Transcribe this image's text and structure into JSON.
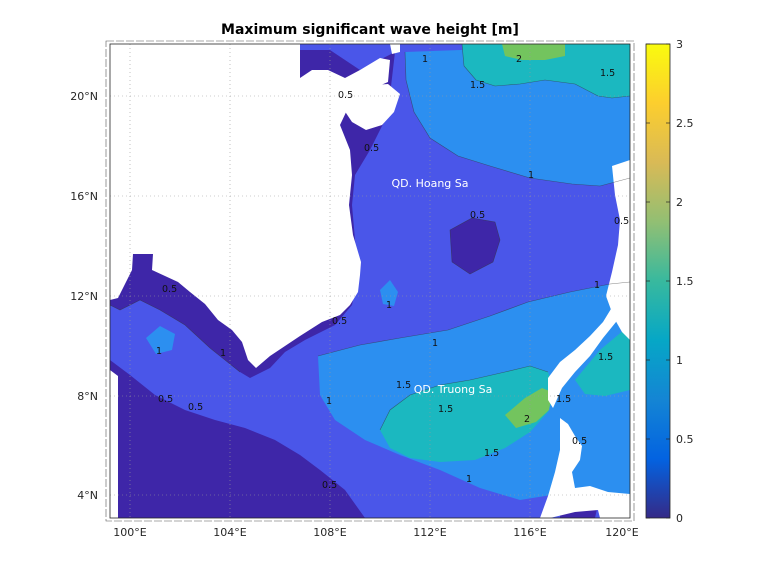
{
  "map": {
    "title": "Maximum significant wave height [m]",
    "lon_range": [
      99.2,
      120.2
    ],
    "lat_range": [
      3.0,
      22.0
    ],
    "lon_ticks": [
      "100°E",
      "104°E",
      "108°E",
      "112°E",
      "116°E",
      "120°E"
    ],
    "lat_ticks": [
      "4°N",
      "8°N",
      "12°N",
      "16°N",
      "20°N"
    ],
    "grid": "dotted",
    "place_labels": [
      "QD. Hoang Sa",
      "QD. Truong Sa"
    ],
    "contour_labels": [
      "0.5",
      "1",
      "1.5",
      "2"
    ],
    "colormap": "parula",
    "colors": {
      "land": "#ffffff",
      "level_0": "#3e26a8",
      "level_0_5": "#4a56e9",
      "level_1": "#2c8ff0",
      "level_1_5": "#1bb8c0",
      "level_2": "#73c45e"
    }
  },
  "colorbar": {
    "min": 0,
    "max": 3,
    "tick_labels": [
      "0",
      "0.5",
      "1",
      "1.5",
      "2",
      "2.5",
      "3"
    ]
  }
}
